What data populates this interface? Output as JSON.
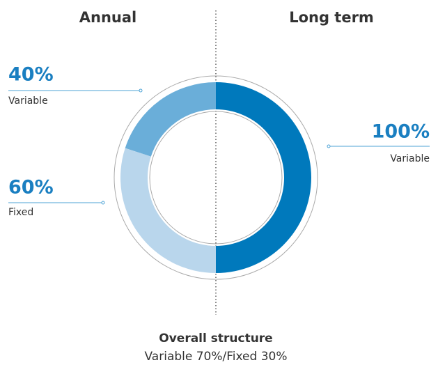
{
  "chart_data": {
    "type": "donut",
    "groups": [
      {
        "name": "Annual",
        "categories": [
          "Variable",
          "Fixed"
        ],
        "values": [
          40,
          60
        ],
        "value_labels": [
          "40%",
          "60%"
        ],
        "colors": [
          "#6aaed9",
          "#b9d6ec"
        ]
      },
      {
        "name": "Long term",
        "categories": [
          "Variable"
        ],
        "values": [
          100
        ],
        "value_labels": [
          "100%"
        ],
        "colors": [
          "#0079bc"
        ]
      }
    ],
    "footer_title": "Overall structure",
    "footer_text": "Variable 70%/Fixed 30%"
  }
}
